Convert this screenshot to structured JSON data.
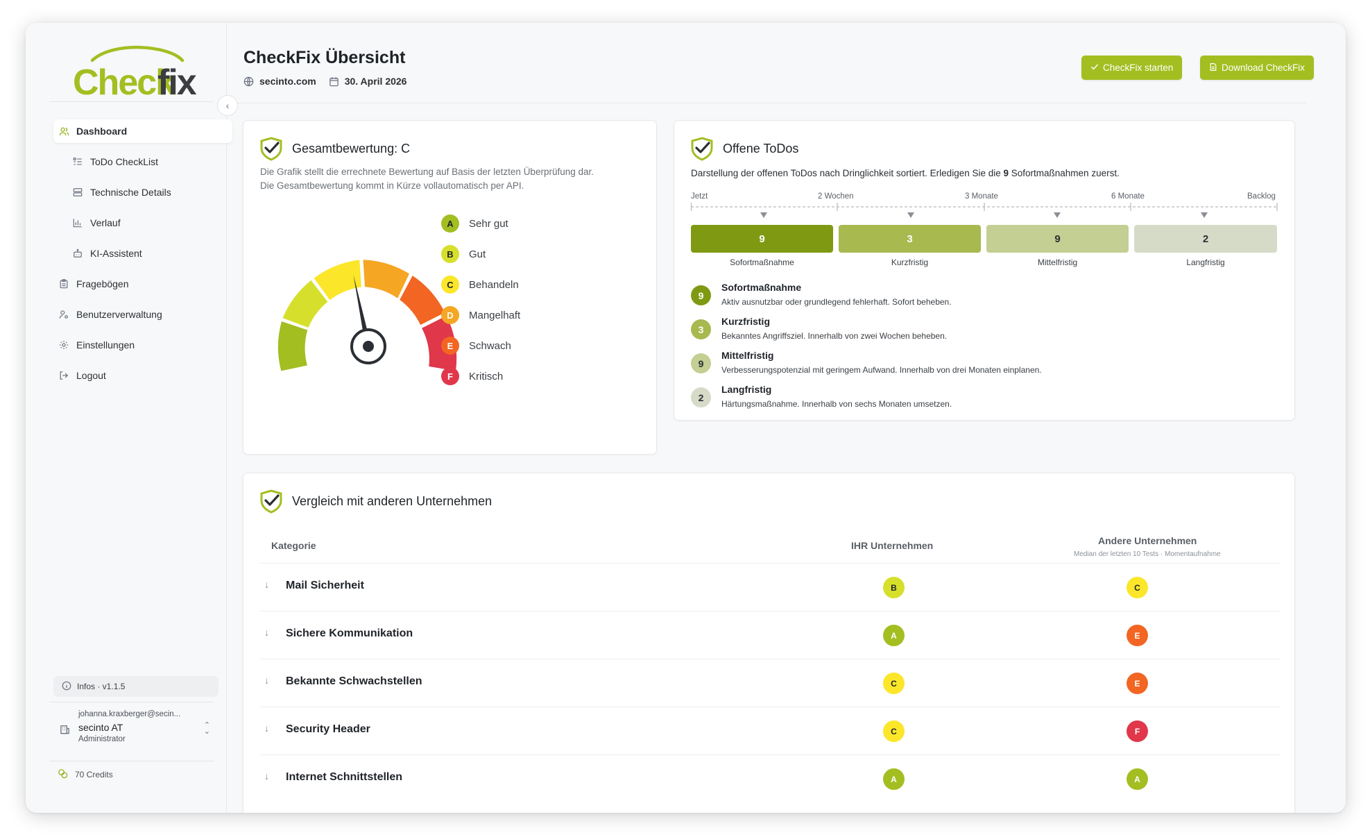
{
  "app": {
    "logo_text": "Checkfix",
    "page_title": "CheckFix Übersicht",
    "domain": "secinto.com",
    "date": "30. April 2026",
    "btn_start": "CheckFix starten",
    "btn_download": "Download CheckFix"
  },
  "sidebar": {
    "items": [
      {
        "label": "Dashboard",
        "icon": "users-icon"
      },
      {
        "label": "ToDo CheckList",
        "icon": "list-icon"
      },
      {
        "label": "Technische Details",
        "icon": "server-icon"
      },
      {
        "label": "Verlauf",
        "icon": "chart-icon"
      },
      {
        "label": "KI-Assistent",
        "icon": "bot-icon"
      },
      {
        "label": "Fragebögen",
        "icon": "clipboard-icon"
      },
      {
        "label": "Benutzerverwaltung",
        "icon": "user-gear-icon"
      },
      {
        "label": "Einstellungen",
        "icon": "gear-icon"
      },
      {
        "label": "Logout",
        "icon": "logout-icon"
      }
    ],
    "info": "Infos · v1.1.5",
    "account": {
      "email": "johanna.kraxberger@secin...",
      "org": "secinto AT",
      "role": "Administrator"
    },
    "credits": "70 Credits"
  },
  "rating": {
    "title": "Gesamtbewertung: C",
    "desc_line1": "Die Grafik stellt die errechnete Bewertung auf Basis der letzten Überprüfung dar.",
    "desc_line2": "Die Gesamtbewertung kommt in Kürze vollautomatisch per API.",
    "legend": [
      {
        "grade": "A",
        "label": "Sehr gut",
        "color": "#a3be21"
      },
      {
        "grade": "B",
        "label": "Gut",
        "color": "#d6e02c"
      },
      {
        "grade": "C",
        "label": "Behandeln",
        "color": "#fbe62a"
      },
      {
        "grade": "D",
        "label": "Mangelhaft",
        "color": "#f5a623"
      },
      {
        "grade": "E",
        "label": "Schwach",
        "color": "#f26522"
      },
      {
        "grade": "F",
        "label": "Kritisch",
        "color": "#e0374b"
      }
    ]
  },
  "todos": {
    "title": "Offene ToDos",
    "desc_pre": "Darstellung der offenen ToDos nach Dringlichkeit sortiert. Erledigen Sie die ",
    "desc_num": "9",
    "desc_post": " Sofortmaßnahmen zuerst.",
    "timeline": [
      "Jetzt",
      "2 Wochen",
      "3 Monate",
      "6 Monate",
      "Backlog"
    ],
    "bars": [
      {
        "count": "9",
        "label": "Sofortmaßnahme",
        "color": "#7f9a12"
      },
      {
        "count": "3",
        "label": "Kurzfristig",
        "color": "#a7b94f"
      },
      {
        "count": "9",
        "label": "Mittelfristig",
        "color": "#c3cf93"
      },
      {
        "count": "2",
        "label": "Langfristig",
        "color": "#d6dbc8"
      }
    ],
    "details": [
      {
        "num": "9",
        "title": "Sofortmaßnahme",
        "text": "Aktiv ausnutzbar oder grundlegend fehlerhaft. Sofort beheben."
      },
      {
        "num": "3",
        "title": "Kurzfristig",
        "text": "Bekanntes Angriffsziel. Innerhalb von zwei Wochen beheben."
      },
      {
        "num": "9",
        "title": "Mittelfristig",
        "text": "Verbesserungspotenzial mit geringem Aufwand. Innerhalb von drei Monaten einplanen."
      },
      {
        "num": "2",
        "title": "Langfristig",
        "text": "Härtungsmaßnahme. Innerhalb von sechs Monaten umsetzen."
      }
    ]
  },
  "comparison": {
    "title": "Vergleich mit anderen Unternehmen",
    "col_category": "Kategorie",
    "col_yours": "IHR Unternehmen",
    "col_others": "Andere Unternehmen",
    "col_others_sub": "Median der letzten 10 Tests · Momentaufnahme",
    "rows": [
      {
        "category": "Mail Sicherheit",
        "yours": "B",
        "others": "C"
      },
      {
        "category": "Sichere Kommunikation",
        "yours": "A",
        "others": "E"
      },
      {
        "category": "Bekannte Schwachstellen",
        "yours": "C",
        "others": "E"
      },
      {
        "category": "Security Header",
        "yours": "C",
        "others": "F"
      },
      {
        "category": "Internet Schnittstellen",
        "yours": "A",
        "others": "A"
      }
    ]
  },
  "colors": {
    "brand": "#a3be21",
    "A": "#a3be21",
    "B": "#d6e02c",
    "C": "#fbe62a",
    "D": "#f5a623",
    "E": "#f26522",
    "F": "#e0374b"
  }
}
